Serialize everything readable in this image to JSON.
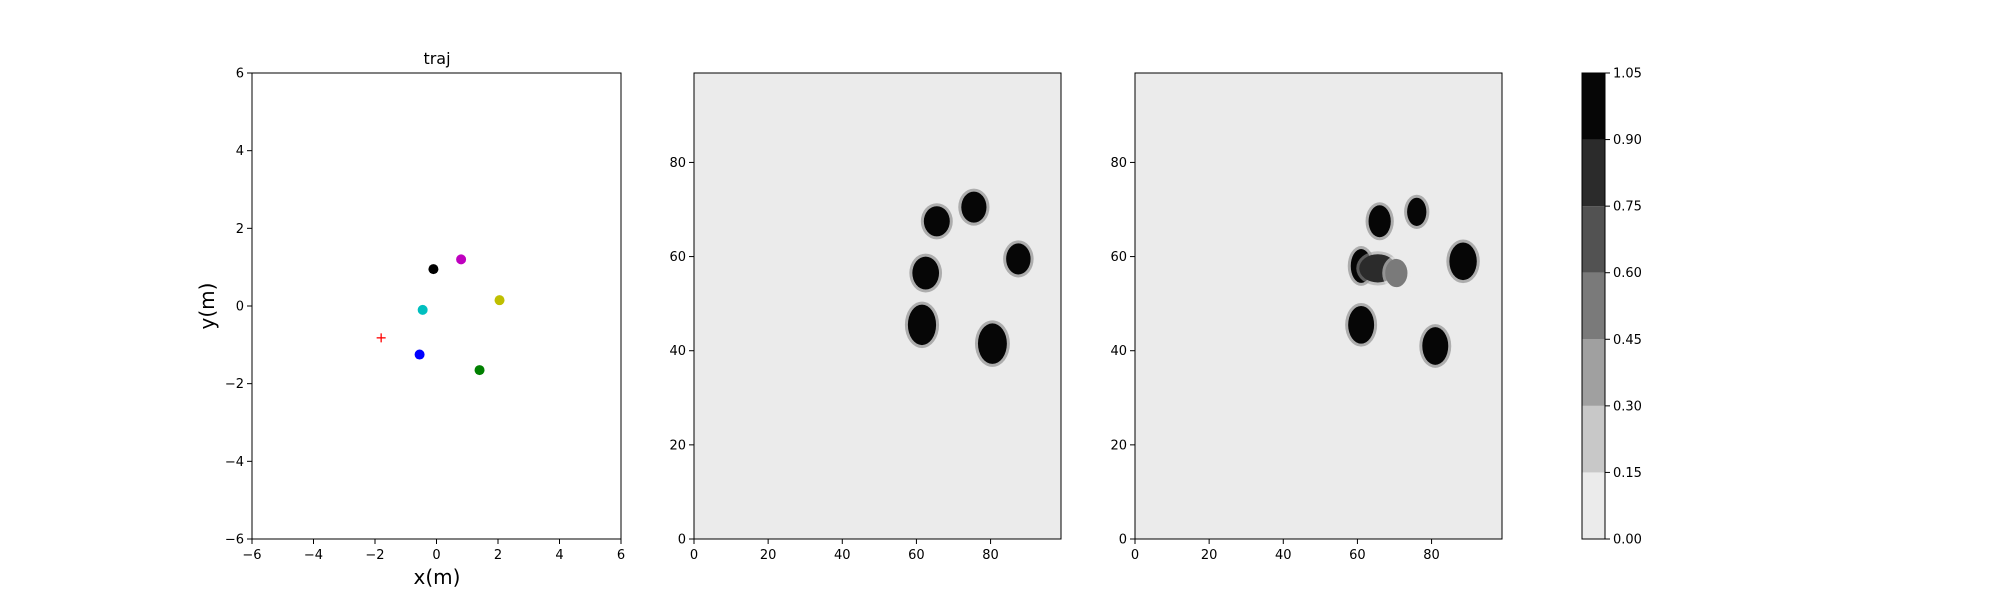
{
  "chart_data": [
    {
      "type": "scatter",
      "title": "traj",
      "xlabel": "x(m)",
      "ylabel": "y(m)",
      "xlim": [
        -6,
        6
      ],
      "ylim": [
        -6,
        6
      ],
      "xticks": [
        "−6",
        "−4",
        "−2",
        "0",
        "2",
        "4",
        "6"
      ],
      "yticks": [
        "−6",
        "−4",
        "−2",
        "0",
        "2",
        "4",
        "6"
      ],
      "grid": false,
      "points": [
        {
          "x": -0.1,
          "y": 0.95,
          "color": "#000000",
          "marker": "circle"
        },
        {
          "x": 0.8,
          "y": 1.2,
          "color": "#bf00bf",
          "marker": "circle"
        },
        {
          "x": 2.05,
          "y": 0.15,
          "color": "#bfbf00",
          "marker": "circle"
        },
        {
          "x": -0.45,
          "y": -0.1,
          "color": "#00bfbf",
          "marker": "circle"
        },
        {
          "x": -0.55,
          "y": -1.25,
          "color": "#0000ff",
          "marker": "circle"
        },
        {
          "x": 1.4,
          "y": -1.65,
          "color": "#008000",
          "marker": "circle"
        },
        {
          "x": -1.8,
          "y": -0.82,
          "color": "#ff0000",
          "marker": "plus"
        }
      ]
    },
    {
      "type": "heatmap",
      "title": "",
      "xlim": [
        0,
        99
      ],
      "ylim": [
        0,
        99
      ],
      "xticks": [
        "0",
        "20",
        "40",
        "60",
        "80"
      ],
      "yticks": [
        "0",
        "20",
        "40",
        "60",
        "80"
      ],
      "background_value": 0.05,
      "blobs": [
        {
          "x": 65.5,
          "y": 67.5,
          "rx": 3.5,
          "ry": 3.2,
          "value": 1.0
        },
        {
          "x": 75.5,
          "y": 70.5,
          "rx": 3.4,
          "ry": 3.3,
          "value": 1.0
        },
        {
          "x": 87.5,
          "y": 59.5,
          "rx": 3.3,
          "ry": 3.3,
          "value": 1.0
        },
        {
          "x": 62.5,
          "y": 56.5,
          "rx": 3.6,
          "ry": 3.5,
          "value": 1.0
        },
        {
          "x": 61.5,
          "y": 45.5,
          "rx": 3.8,
          "ry": 4.3,
          "value": 1.0
        },
        {
          "x": 80.5,
          "y": 41.5,
          "rx": 3.9,
          "ry": 4.3,
          "value": 1.0
        }
      ]
    },
    {
      "type": "heatmap",
      "title": "",
      "xlim": [
        0,
        99
      ],
      "ylim": [
        0,
        99
      ],
      "xticks": [
        "0",
        "20",
        "40",
        "60",
        "80"
      ],
      "yticks": [
        "0",
        "20",
        "40",
        "60",
        "80"
      ],
      "background_value": 0.05,
      "blobs": [
        {
          "x": 66.0,
          "y": 67.5,
          "rx": 3.0,
          "ry": 3.4,
          "value": 1.0
        },
        {
          "x": 76.0,
          "y": 69.5,
          "rx": 2.6,
          "ry": 3.0,
          "value": 1.0
        },
        {
          "x": 88.5,
          "y": 59.0,
          "rx": 3.7,
          "ry": 4.0,
          "value": 1.0
        },
        {
          "x": 61.0,
          "y": 58.0,
          "rx": 2.8,
          "ry": 3.6,
          "value": 1.0
        },
        {
          "x": 65.5,
          "y": 57.5,
          "rx": 5.0,
          "ry": 3.0,
          "value": 0.85
        },
        {
          "x": 70.5,
          "y": 56.5,
          "rx": 3.0,
          "ry": 3.0,
          "value": 0.55
        },
        {
          "x": 61.0,
          "y": 45.5,
          "rx": 3.5,
          "ry": 4.0,
          "value": 1.0
        },
        {
          "x": 81.0,
          "y": 41.0,
          "rx": 3.5,
          "ry": 4.0,
          "value": 1.0
        }
      ]
    }
  ],
  "colorbar": {
    "levels": [
      0.0,
      0.15,
      0.3,
      0.45,
      0.6,
      0.75,
      0.9,
      1.05
    ],
    "labels": [
      "0.00",
      "0.15",
      "0.30",
      "0.45",
      "0.60",
      "0.75",
      "0.90",
      "1.05"
    ],
    "colors": [
      "#ebebeb",
      "#c8c8c8",
      "#a0a0a0",
      "#7a7a7a",
      "#525252",
      "#2b2b2b",
      "#060606"
    ]
  }
}
